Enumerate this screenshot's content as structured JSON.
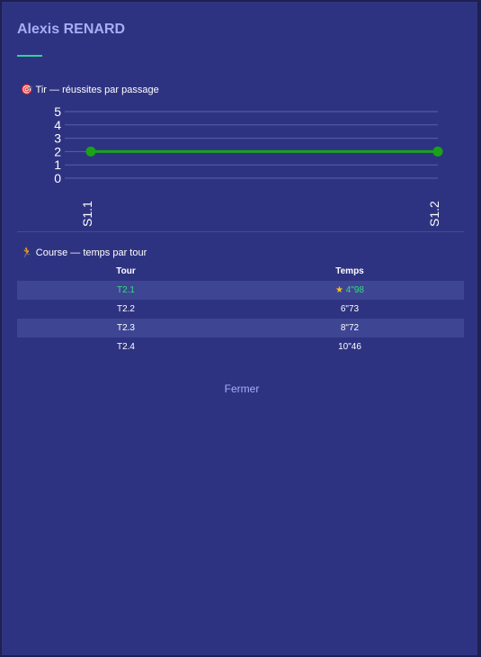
{
  "header": {
    "title": "Alexis RENARD"
  },
  "chart_data": {
    "type": "line",
    "title": "🎯 Tir — réussites par passage",
    "categories": [
      "S1.1",
      "S1.2"
    ],
    "values": [
      2,
      2
    ],
    "color": "#19a319",
    "ylim": [
      0,
      5
    ],
    "yticks": [
      0,
      1,
      2,
      3,
      4,
      5
    ],
    "grid": true
  },
  "course": {
    "title": "🏃 Course — temps par tour",
    "columns": [
      "Tour",
      "Temps"
    ],
    "rows": [
      [
        "T2.1",
        "4\"98"
      ],
      [
        "T2.2",
        "6\"73"
      ],
      [
        "T2.3",
        "8\"72"
      ],
      [
        "T2.4",
        "10\"46"
      ]
    ]
  },
  "footer": {
    "close": "Fermer"
  }
}
